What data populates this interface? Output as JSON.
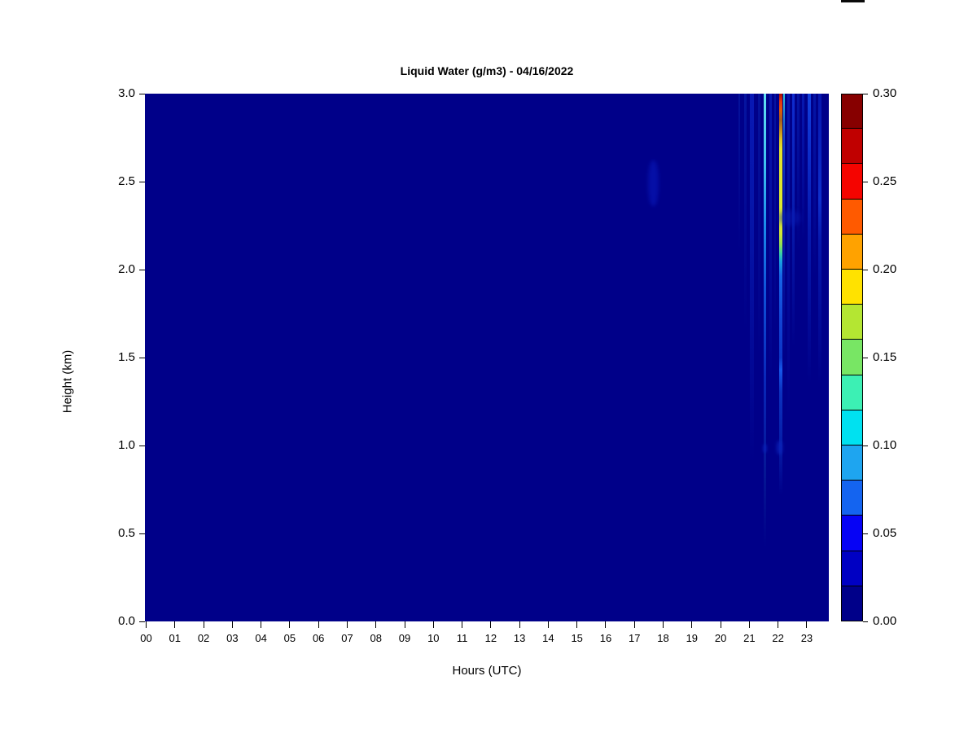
{
  "chart_data": {
    "type": "heatmap",
    "title": "Liquid Water (g/m3) - 04/16/2022",
    "xlabel": "Hours (UTC)",
    "ylabel": "Height (km)",
    "x_range_hours": [
      0,
      24
    ],
    "y_range_km": [
      0,
      3
    ],
    "x_tick_labels": [
      "00",
      "01",
      "02",
      "03",
      "04",
      "05",
      "06",
      "07",
      "08",
      "09",
      "10",
      "11",
      "12",
      "13",
      "14",
      "15",
      "16",
      "17",
      "18",
      "19",
      "20",
      "21",
      "22",
      "23"
    ],
    "y_tick_labels": [
      "0.0",
      "0.5",
      "1.0",
      "1.5",
      "2.0",
      "2.5",
      "3.0"
    ],
    "background_value": 0.0,
    "background_color": "#000089",
    "colorbar": {
      "range": [
        0.0,
        0.3
      ],
      "step": 0.02,
      "tick_labels": [
        "0.30",
        "0.25",
        "0.20",
        "0.15",
        "0.10",
        "0.05",
        "0.00"
      ],
      "levels_top_to_bottom": [
        {
          "from": 0.28,
          "to": 0.3,
          "color": "#870000"
        },
        {
          "from": 0.26,
          "to": 0.28,
          "color": "#c00000"
        },
        {
          "from": 0.24,
          "to": 0.26,
          "color": "#f50400"
        },
        {
          "from": 0.22,
          "to": 0.24,
          "color": "#ff5a00"
        },
        {
          "from": 0.2,
          "to": 0.22,
          "color": "#ffa200"
        },
        {
          "from": 0.18,
          "to": 0.2,
          "color": "#ffe200"
        },
        {
          "from": 0.16,
          "to": 0.18,
          "color": "#b4e632"
        },
        {
          "from": 0.14,
          "to": 0.16,
          "color": "#78e664"
        },
        {
          "from": 0.12,
          "to": 0.14,
          "color": "#3cf0b4"
        },
        {
          "from": 0.1,
          "to": 0.12,
          "color": "#00e1f0"
        },
        {
          "from": 0.08,
          "to": 0.1,
          "color": "#1ea5f0"
        },
        {
          "from": 0.06,
          "to": 0.08,
          "color": "#1464f0"
        },
        {
          "from": 0.04,
          "to": 0.06,
          "color": "#0603f5"
        },
        {
          "from": 0.02,
          "to": 0.04,
          "color": "#0000c3"
        },
        {
          "from": 0.0,
          "to": 0.02,
          "color": "#000089"
        }
      ]
    },
    "features": [
      {
        "type": "blob",
        "name": "faint-cloud-18utc",
        "hour": 17.65,
        "km_top": 2.62,
        "km_bot": 2.36,
        "w": 13,
        "color": "#0714b0",
        "blur": 2.5,
        "opacity": 0.75
      },
      {
        "type": "streak",
        "hour": 20.65,
        "w": 2.5,
        "stops": [
          [
            "#04129c",
            0
          ],
          [
            "rgba(4,12,150,0)",
            30
          ]
        ]
      },
      {
        "type": "streak",
        "hour": 20.85,
        "w": 3,
        "stops": [
          [
            "#0514a0",
            0
          ],
          [
            "rgba(4,12,150,0)",
            45
          ]
        ]
      },
      {
        "type": "streak",
        "hour": 21.1,
        "w": 5,
        "stops": [
          [
            "#0818b4",
            0
          ],
          [
            "#0616aa",
            20
          ],
          [
            "rgba(4,12,150,0)",
            70
          ]
        ]
      },
      {
        "type": "streak",
        "hour": 21.35,
        "w": 3,
        "stops": [
          [
            "#04129c",
            0
          ],
          [
            "rgba(4,12,150,0)",
            50
          ]
        ]
      },
      {
        "type": "streak",
        "hour": 21.53,
        "w": 3,
        "stops": [
          [
            "#62dff2",
            0
          ],
          [
            "#40c4f0",
            13
          ],
          [
            "#1b8cec",
            25
          ],
          [
            "#1054da",
            37
          ],
          [
            "#0928ba",
            54
          ],
          [
            "#051694",
            72
          ],
          [
            "rgba(4,12,150,0)",
            86
          ]
        ]
      },
      {
        "type": "streak",
        "hour": 21.75,
        "w": 3,
        "stops": [
          [
            "#0718b0",
            0
          ],
          [
            "rgba(4,12,150,0)",
            55
          ]
        ]
      },
      {
        "type": "streak",
        "hour": 21.9,
        "w": 2.5,
        "stops": [
          [
            "#0514a4",
            0
          ],
          [
            "rgba(4,12,150,0)",
            45
          ]
        ]
      },
      {
        "type": "streak",
        "hour": 22.1,
        "w": 4,
        "stops": [
          [
            "#a50e00",
            0
          ],
          [
            "#e63311",
            1.5
          ],
          [
            "#e05a07",
            3.2
          ],
          [
            "#a55f1e",
            5
          ],
          [
            "#c6901c",
            7
          ],
          [
            "#dcc522",
            8.7
          ],
          [
            "#e3e52c",
            10.5
          ],
          [
            "#dde930",
            20
          ],
          [
            "#d2e636",
            26.5
          ],
          [
            "#93e055",
            28.6
          ],
          [
            "#3ed2a2",
            30.2
          ],
          [
            "#18a2e2",
            31.8
          ],
          [
            "#1766e8",
            34.5
          ],
          [
            "#1243d4",
            43
          ],
          [
            "#0c36c6",
            50
          ],
          [
            "#1758ea",
            52.3
          ],
          [
            "#0c32bf",
            56.5
          ],
          [
            "#061ea8",
            66
          ],
          [
            "rgba(4,12,150,0)",
            76
          ]
        ]
      },
      {
        "type": "streak",
        "hour": 22.21,
        "w": 2,
        "stops": [
          [
            "#2cc4dc",
            0
          ],
          [
            "#1248cc",
            8
          ],
          [
            "#0820b0",
            20
          ],
          [
            "rgba(4,12,150,0)",
            50
          ]
        ]
      },
      {
        "type": "streak",
        "hour": 22.37,
        "w": 2.5,
        "stops": [
          [
            "#0616ac",
            0
          ],
          [
            "rgba(4,12,150,0)",
            62
          ]
        ]
      },
      {
        "type": "streak",
        "hour": 22.54,
        "w": 3.5,
        "stops": [
          [
            "#0f2cd0",
            0
          ],
          [
            "#0820b4",
            18
          ],
          [
            "rgba(4,12,150,0)",
            48
          ]
        ]
      },
      {
        "type": "streak",
        "hour": 22.71,
        "w": 2.5,
        "stops": [
          [
            "#0514a4",
            0
          ],
          [
            "rgba(4,12,150,0)",
            30
          ]
        ]
      },
      {
        "type": "streak",
        "hour": 22.88,
        "w": 2.5,
        "stops": [
          [
            "#0618b0",
            0
          ],
          [
            "rgba(4,12,150,0)",
            28
          ]
        ]
      },
      {
        "type": "streak",
        "hour": 23.08,
        "w": 4,
        "stops": [
          [
            "#1240dc",
            0
          ],
          [
            "#0c2cc8",
            12
          ],
          [
            "#0618ac",
            26
          ],
          [
            "rgba(4,12,150,0)",
            55
          ]
        ]
      },
      {
        "type": "streak",
        "hour": 23.28,
        "w": 3,
        "stops": [
          [
            "#0514a6",
            0
          ],
          [
            "rgba(4,12,150,0)",
            35
          ]
        ]
      },
      {
        "type": "streak",
        "hour": 23.46,
        "w": 3.5,
        "stops": [
          [
            "#0616ae",
            0
          ],
          [
            "#0e30cc",
            20
          ],
          [
            "#0618ac",
            28
          ],
          [
            "rgba(4,12,150,0)",
            55
          ]
        ]
      },
      {
        "type": "blob",
        "name": "faint-band-22utc",
        "hour": 22.4,
        "km_top": 2.34,
        "km_bot": 2.25,
        "w": 26,
        "color": "#0a1cb4",
        "blur": 3,
        "opacity": 0.5
      },
      {
        "type": "blob",
        "name": "low-echo-1km-a",
        "hour": 21.55,
        "km_top": 1.01,
        "km_bot": 0.96,
        "w": 5,
        "color": "#0a20b8",
        "blur": 1.5,
        "opacity": 0.8
      },
      {
        "type": "blob",
        "name": "low-echo-1km-b",
        "hour": 22.05,
        "km_top": 1.03,
        "km_bot": 0.95,
        "w": 7,
        "color": "#0c24bc",
        "blur": 2,
        "opacity": 0.8
      }
    ]
  },
  "decorations": {
    "top_right_bar_color": "#0a0a0a"
  }
}
